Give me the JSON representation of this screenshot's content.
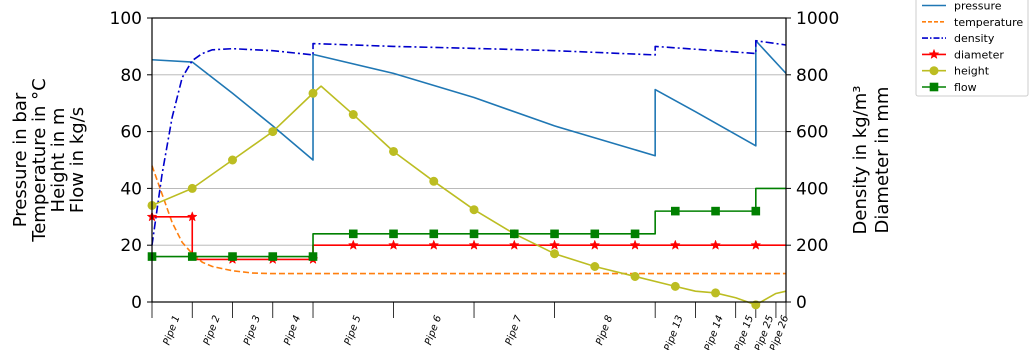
{
  "chart_data": {
    "type": "line",
    "title": "",
    "xlabel": "",
    "ylabel_left": [
      "Pressure in bar",
      "Temperature in °C",
      "Height in m",
      "Flow in kg/s"
    ],
    "ylabel_right": [
      "Density in kg/m³",
      "Diameter in mm"
    ],
    "ylim_left": [
      0,
      100
    ],
    "ylim_right": [
      0,
      1000
    ],
    "yticks_left": [
      "0",
      "20",
      "40",
      "60",
      "80",
      "100"
    ],
    "yticks_right": [
      "0",
      "200",
      "400",
      "600",
      "800",
      "1000"
    ],
    "xlim": [
      0,
      31.5
    ],
    "grid": "horizontal",
    "legend_position": "top-right, outside plot",
    "pipe_boundaries": [
      0,
      2,
      4,
      6,
      8,
      12,
      16,
      20,
      25,
      27,
      29,
      30,
      31,
      31.5
    ],
    "pipe_labels": [
      {
        "label": "Pipe 1",
        "center": 1
      },
      {
        "label": "Pipe 2",
        "center": 3
      },
      {
        "label": "Pipe 3",
        "center": 5
      },
      {
        "label": "Pipe 4",
        "center": 7
      },
      {
        "label": "Pipe 5",
        "center": 10
      },
      {
        "label": "Pipe 6",
        "center": 14
      },
      {
        "label": "Pipe 7",
        "center": 18
      },
      {
        "label": "Pipe 8",
        "center": 22.5
      },
      {
        "label": "Pipe 13",
        "center": 26
      },
      {
        "label": "Pipe 14",
        "center": 28
      },
      {
        "label": "Pipe 15",
        "center": 29.5
      },
      {
        "label": "Pipe 25",
        "center": 30.5
      },
      {
        "label": "Pipe 26",
        "center": 31.25
      }
    ],
    "series": [
      {
        "name": "pressure",
        "axis": "left",
        "color": "#1f77b4",
        "dash": "solid",
        "marker": "none",
        "points": [
          [
            0,
            85.3
          ],
          [
            2,
            84.5
          ],
          [
            4,
            73.5
          ],
          [
            6,
            62
          ],
          [
            8,
            50
          ],
          [
            8,
            87.2
          ],
          [
            12,
            80.5
          ],
          [
            16,
            72
          ],
          [
            20,
            62
          ],
          [
            25,
            51.5
          ],
          [
            25,
            74.8
          ],
          [
            27,
            67
          ],
          [
            29,
            59
          ],
          [
            30,
            55
          ],
          [
            30,
            92
          ],
          [
            31.5,
            80.5
          ]
        ]
      },
      {
        "name": "temperature",
        "axis": "left",
        "color": "#ff7f0e",
        "dash": "dashed",
        "marker": "none",
        "points": [
          [
            0,
            48
          ],
          [
            0.5,
            38
          ],
          [
            1,
            28
          ],
          [
            1.5,
            21
          ],
          [
            2,
            17
          ],
          [
            2.5,
            14
          ],
          [
            3,
            12.5
          ],
          [
            4,
            11
          ],
          [
            5,
            10.2
          ],
          [
            6,
            10
          ],
          [
            31.5,
            10
          ]
        ]
      },
      {
        "name": "density",
        "axis": "right",
        "color": "#0000cc",
        "dash": "dashdot",
        "marker": "none",
        "points": [
          [
            0,
            200
          ],
          [
            0.5,
            450
          ],
          [
            1,
            650
          ],
          [
            1.5,
            790
          ],
          [
            2,
            850
          ],
          [
            2.5,
            875
          ],
          [
            3,
            888
          ],
          [
            4,
            892
          ],
          [
            6,
            885
          ],
          [
            8,
            870
          ],
          [
            8,
            910
          ],
          [
            12,
            900
          ],
          [
            16,
            893
          ],
          [
            20,
            885
          ],
          [
            25,
            870
          ],
          [
            25,
            900
          ],
          [
            29,
            880
          ],
          [
            30,
            875
          ],
          [
            30,
            920
          ],
          [
            31.5,
            905
          ]
        ]
      },
      {
        "name": "diameter",
        "axis": "right",
        "color": "#ff0000",
        "dash": "solid",
        "marker": "star",
        "points": [
          [
            0,
            300
          ],
          [
            2,
            300
          ],
          [
            2,
            150
          ],
          [
            8,
            150
          ],
          [
            8,
            200
          ],
          [
            31.5,
            200
          ]
        ],
        "marker_x": [
          0,
          2,
          4,
          6,
          8,
          10,
          12,
          14,
          16,
          18,
          20,
          22,
          24,
          26,
          28,
          30
        ]
      },
      {
        "name": "height",
        "axis": "left",
        "color": "#bcbd22",
        "dash": "solid",
        "marker": "circle",
        "points": [
          [
            0,
            34
          ],
          [
            2,
            40
          ],
          [
            4,
            50
          ],
          [
            6,
            60
          ],
          [
            8,
            73.5
          ],
          [
            8.4,
            76
          ],
          [
            10,
            66
          ],
          [
            12,
            53
          ],
          [
            14,
            42.5
          ],
          [
            16,
            32.5
          ],
          [
            18,
            24
          ],
          [
            20,
            17
          ],
          [
            22,
            12.5
          ],
          [
            24,
            9
          ],
          [
            26,
            5.5
          ],
          [
            27,
            3.8
          ],
          [
            28,
            3.2
          ],
          [
            29,
            1.5
          ],
          [
            30,
            -1
          ],
          [
            31,
            3
          ],
          [
            31.5,
            3.8
          ]
        ],
        "marker_x": [
          0,
          2,
          4,
          6,
          8,
          10,
          12,
          14,
          16,
          18,
          20,
          22,
          24,
          26,
          28,
          30
        ]
      },
      {
        "name": "flow",
        "axis": "left",
        "color": "#008000",
        "dash": "solid",
        "marker": "square",
        "points": [
          [
            0,
            16
          ],
          [
            8,
            16
          ],
          [
            8,
            24
          ],
          [
            25,
            24
          ],
          [
            25,
            32
          ],
          [
            30,
            32
          ],
          [
            30,
            40
          ],
          [
            31.5,
            40
          ]
        ],
        "marker_x": [
          0,
          2,
          4,
          6,
          8,
          10,
          12,
          14,
          16,
          18,
          20,
          22,
          24,
          26,
          28,
          30
        ]
      }
    ]
  }
}
